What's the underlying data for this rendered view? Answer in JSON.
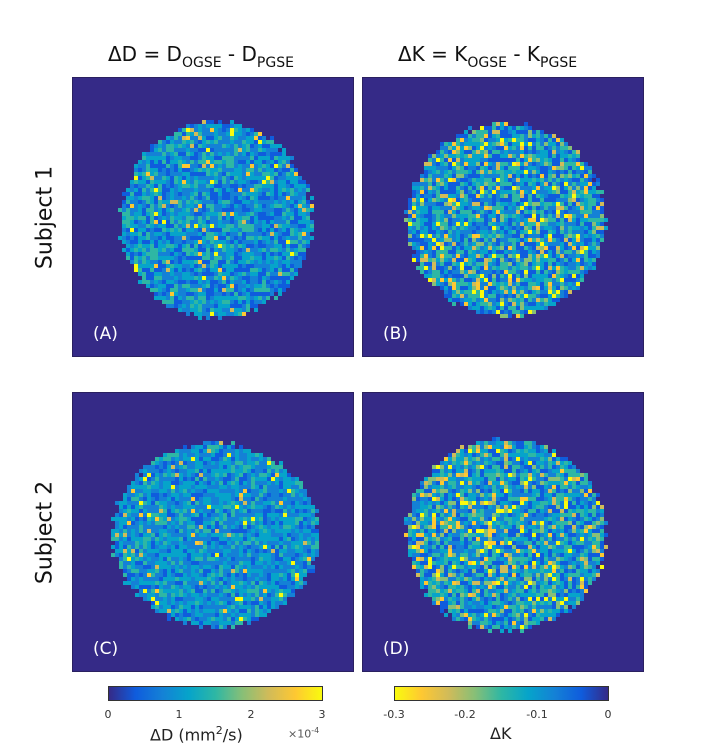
{
  "columns": {
    "left_title": {
      "prefix": "ΔD = D",
      "sub1": "OGSE",
      "mid": " - D",
      "sub2": "PGSE"
    },
    "right_title": {
      "prefix": "ΔK =  K",
      "sub1": "OGSE",
      "mid": " - K",
      "sub2": "PGSE"
    }
  },
  "rows": {
    "subject1": "Subject 1",
    "subject2": "Subject 2"
  },
  "panels": {
    "A": "(A)",
    "B": "(B)",
    "C": "(C)",
    "D": "(D)"
  },
  "colorbars": {
    "diffusion": {
      "ticks": [
        "0",
        "1",
        "2",
        "3"
      ],
      "label_prefix": "ΔD (mm",
      "label_sup": "2",
      "label_suffix": "/s)",
      "exponent_prefix": "×10",
      "exponent_sup": "-4",
      "range": [
        0,
        3
      ]
    },
    "kurtosis": {
      "ticks": [
        "-0.3",
        "-0.2",
        "-0.1",
        "0"
      ],
      "label": "ΔK",
      "range": [
        -0.3,
        0
      ]
    }
  },
  "colors": {
    "background_map": "#352a87",
    "parula_low": "#352a87",
    "parula_high": "#f9fb0e"
  }
}
